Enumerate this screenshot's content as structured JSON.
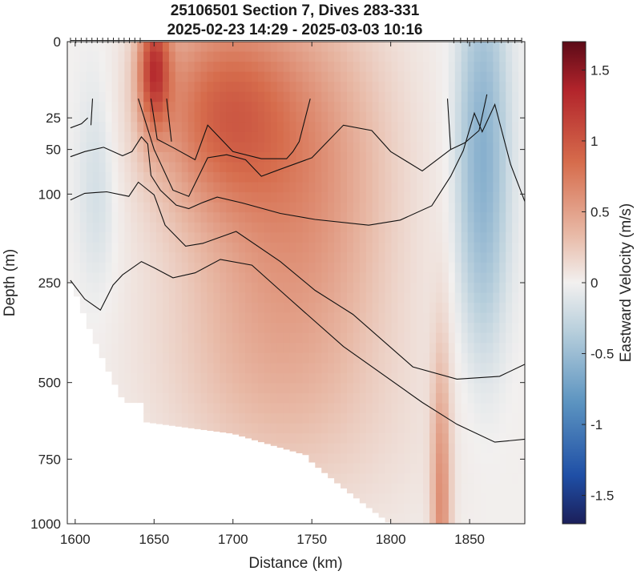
{
  "chart_data": {
    "type": "heatmap",
    "title": "25106501 Section 7, Dives 283-331",
    "subtitle": "2025-02-23 14:29 - 2025-03-03 10:16",
    "xlabel": "Distance (km)",
    "ylabel": "Depth (m)",
    "colorbar_label": "Eastward Velocity (m/s)",
    "xlim": [
      1595,
      1885
    ],
    "ylim": [
      0,
      1000
    ],
    "y_scale": "square-root (depth axis, increasing downward)",
    "x_ticks": [
      "1600",
      "1650",
      "1700",
      "1750",
      "1800",
      "1850"
    ],
    "y_ticks": [
      "0",
      "25",
      "50",
      "100",
      "250",
      "500",
      "750",
      "1000"
    ],
    "colorbar_ticks": [
      "1.5",
      "1",
      "0.5",
      "0",
      "-0.5",
      "-1",
      "-1.5"
    ],
    "clim": [
      -1.7,
      1.7
    ],
    "colormap": "blue-white-red diverging",
    "dive_markers_top": true,
    "velocity_field": {
      "description": "Eastward jet core between ~1640 and ~1820 km, strongest near surface at ~1650 km, weak westward flow at edges",
      "core_max": {
        "x": 1650,
        "depth": 5,
        "value": 1.6
      },
      "regions": [
        {
          "x_range": [
            1640,
            1660
          ],
          "depth_range": [
            0,
            150
          ],
          "value": 1.0
        },
        {
          "x_range": [
            1660,
            1760
          ],
          "depth_range": [
            0,
            100
          ],
          "value": 0.9
        },
        {
          "x_range": [
            1700,
            1820
          ],
          "depth_range": [
            0,
            250
          ],
          "value": 0.7
        },
        {
          "x_range": [
            1640,
            1800
          ],
          "depth_range": [
            100,
            500
          ],
          "value": 0.45
        },
        {
          "x_range": [
            1660,
            1810
          ],
          "depth_range": [
            500,
            800
          ],
          "value": 0.25
        },
        {
          "x_range": [
            1820,
            1840
          ],
          "depth_range": [
            250,
            1000
          ],
          "value": 0.4
        },
        {
          "x_range": [
            1840,
            1885
          ],
          "depth_range": [
            0,
            1000
          ],
          "value": -0.15
        },
        {
          "x_range": [
            1595,
            1630
          ],
          "depth_range": [
            0,
            250
          ],
          "value": -0.1
        }
      ]
    },
    "contour_lines": [
      [
        [
          1610,
          30
        ],
        [
          1611,
          14
        ]
      ],
      [
        [
          1597,
          32
        ],
        [
          1604,
          29
        ],
        [
          1608,
          25
        ]
      ],
      [
        [
          1597,
          57
        ],
        [
          1606,
          52
        ],
        [
          1618,
          48
        ],
        [
          1630,
          56
        ],
        [
          1636,
          52
        ],
        [
          1642,
          39
        ],
        [
          1646,
          45
        ],
        [
          1648,
          77
        ],
        [
          1654,
          95
        ],
        [
          1664,
          115
        ],
        [
          1672,
          120
        ],
        [
          1680,
          112
        ],
        [
          1690,
          104
        ],
        [
          1706,
          112
        ],
        [
          1730,
          127
        ],
        [
          1752,
          136
        ],
        [
          1786,
          145
        ],
        [
          1806,
          137
        ],
        [
          1826,
          116
        ],
        [
          1838,
          78
        ],
        [
          1846,
          51
        ],
        [
          1853,
          22
        ],
        [
          1858,
          35
        ],
        [
          1866,
          17
        ],
        [
          1876,
          65
        ],
        [
          1885,
          110
        ]
      ],
      [
        [
          1597,
          108
        ],
        [
          1606,
          99
        ],
        [
          1620,
          97
        ],
        [
          1634,
          103
        ],
        [
          1640,
          85
        ],
        [
          1650,
          101
        ],
        [
          1657,
          145
        ],
        [
          1670,
          180
        ],
        [
          1681,
          175
        ],
        [
          1702,
          155
        ],
        [
          1730,
          208
        ],
        [
          1752,
          266
        ],
        [
          1776,
          320
        ],
        [
          1814,
          455
        ],
        [
          1842,
          490
        ],
        [
          1869,
          482
        ],
        [
          1885,
          448
        ]
      ],
      [
        [
          1597,
          245
        ],
        [
          1606,
          285
        ],
        [
          1616,
          310
        ],
        [
          1624,
          255
        ],
        [
          1630,
          234
        ],
        [
          1642,
          208
        ],
        [
          1650,
          220
        ],
        [
          1662,
          240
        ],
        [
          1676,
          230
        ],
        [
          1692,
          204
        ],
        [
          1712,
          215
        ],
        [
          1736,
          285
        ],
        [
          1770,
          400
        ],
        [
          1820,
          560
        ],
        [
          1842,
          630
        ],
        [
          1866,
          690
        ],
        [
          1885,
          680
        ]
      ]
    ],
    "contour_lines_upper": [
      [
        [
          1640,
          14
        ],
        [
          1650,
          50
        ],
        [
          1662,
          95
        ],
        [
          1672,
          103
        ],
        [
          1684,
          58
        ],
        [
          1696,
          55
        ],
        [
          1708,
          60
        ],
        [
          1718,
          78
        ],
        [
          1730,
          70
        ],
        [
          1750,
          58
        ],
        [
          1770,
          30
        ],
        [
          1788,
          34
        ],
        [
          1800,
          52
        ],
        [
          1820,
          72
        ],
        [
          1838,
          50
        ]
      ],
      [
        [
          1648,
          14
        ],
        [
          1652,
          41
        ],
        [
          1663,
          49
        ],
        [
          1676,
          60
        ],
        [
          1684,
          30
        ],
        [
          1700,
          52
        ],
        [
          1718,
          59
        ],
        [
          1734,
          59
        ],
        [
          1738,
          52
        ],
        [
          1742,
          43
        ],
        [
          1749,
          14
        ]
      ],
      [
        [
          1658,
          14
        ],
        [
          1661,
          43
        ]
      ],
      [
        [
          1836,
          14
        ],
        [
          1838,
          50
        ],
        [
          1847,
          44
        ],
        [
          1856,
          34
        ],
        [
          1861,
          12
        ]
      ]
    ]
  }
}
